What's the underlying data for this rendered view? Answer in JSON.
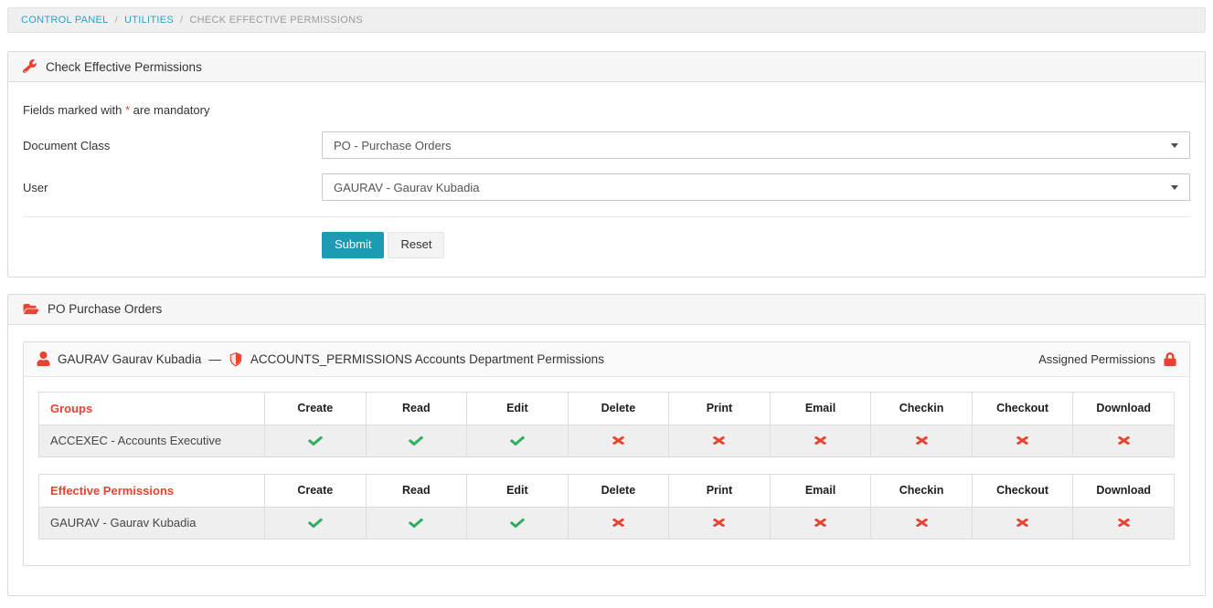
{
  "breadcrumb": {
    "separator": "/",
    "items": [
      {
        "label": "CONTROL PANEL"
      },
      {
        "label": "UTILITIES"
      },
      {
        "label": "CHECK EFFECTIVE PERMISSIONS"
      }
    ]
  },
  "form_panel": {
    "title": "Check Effective Permissions",
    "mandatory_note": {
      "prefix": "Fields marked with ",
      "asterisk": "*",
      "suffix": " are mandatory"
    },
    "fields": [
      {
        "label": "Document Class",
        "value": "PO - Purchase Orders"
      },
      {
        "label": "User",
        "value": "GAURAV - Gaurav Kubadia"
      }
    ],
    "buttons": {
      "submit": "Submit",
      "reset": "Reset"
    }
  },
  "results_panel": {
    "title": "PO Purchase Orders",
    "inner": {
      "user_label": "GAURAV Gaurav Kubadia",
      "dash": "—",
      "group_label": "ACCOUNTS_PERMISSIONS Accounts Department Permissions",
      "right_label": "Assigned Permissions",
      "tables": [
        {
          "first_header": "Groups",
          "columns": [
            "Create",
            "Read",
            "Edit",
            "Delete",
            "Print",
            "Email",
            "Checkin",
            "Checkout",
            "Download"
          ],
          "rows": [
            {
              "name": "ACCEXEC - Accounts Executive",
              "perms": [
                true,
                true,
                true,
                false,
                false,
                false,
                false,
                false,
                false
              ]
            }
          ]
        },
        {
          "first_header": "Effective Permissions",
          "columns": [
            "Create",
            "Read",
            "Edit",
            "Delete",
            "Print",
            "Email",
            "Checkin",
            "Checkout",
            "Download"
          ],
          "rows": [
            {
              "name": "GAURAV - Gaurav Kubadia",
              "perms": [
                true,
                true,
                true,
                false,
                false,
                false,
                false,
                false,
                false
              ]
            }
          ]
        }
      ]
    }
  },
  "icons": {
    "header1": "wrench-icon",
    "header2": "folder-open-icon",
    "user": "user-icon",
    "group": "shield-icon",
    "assigned": "lock-icon",
    "granted": "check-icon",
    "denied": "x-icon"
  },
  "colors": {
    "accent_red": "#e8432e",
    "link_teal": "#2ba3c2",
    "submit_blue": "#1e9ab5",
    "check_green": "#2fae5f",
    "row_gray": "#efefef"
  }
}
